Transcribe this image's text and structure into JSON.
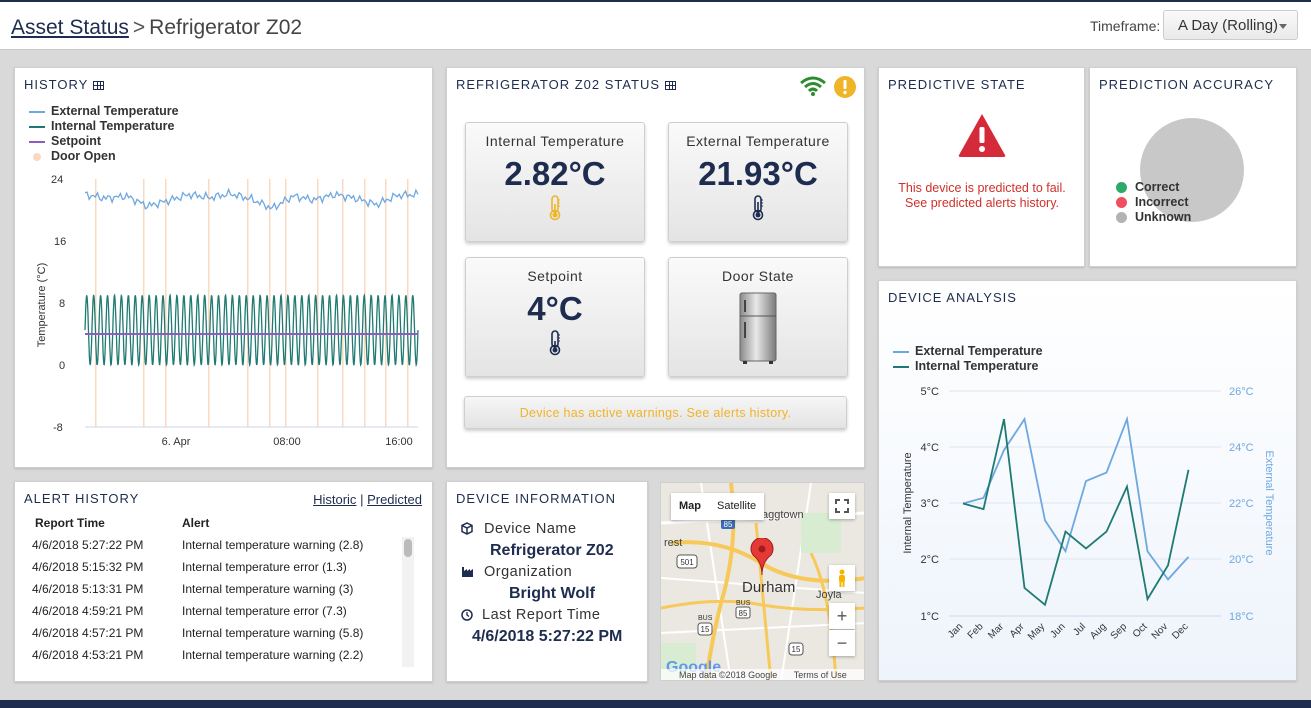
{
  "header": {
    "breadcrumb_root": "Asset Status",
    "breadcrumb_sep": ">",
    "breadcrumb_current": "Refrigerator Z02",
    "timeframe_label": "Timeframe:",
    "timeframe_value": "A Day (Rolling)"
  },
  "history": {
    "title": "History",
    "legend": [
      "External Temperature",
      "Internal Temperature",
      "Setpoint",
      "Door Open"
    ],
    "colors": {
      "external": "#6ea8e0",
      "internal": "#1f7a72",
      "setpoint": "#8e5cc0",
      "door": "#fbd9c0"
    },
    "chart_data": {
      "type": "line",
      "ylabel": "Temperature (°C)",
      "yticks": [
        "24",
        "16",
        "8",
        "0",
        "-8"
      ],
      "ylim": [
        -8,
        24
      ],
      "xticks": [
        "6. Apr",
        "08:00",
        "16:00"
      ],
      "series": [
        {
          "name": "External Temperature",
          "values": [
            22,
            21.5,
            21.8,
            20.5,
            21.2,
            22,
            21.6,
            22.1,
            21.4,
            20.2,
            21.8,
            21.3,
            22,
            21.5,
            20.7,
            21.9,
            22
          ]
        },
        {
          "name": "Internal Temperature",
          "min": 0,
          "max": 9,
          "cycles": 48
        },
        {
          "name": "Setpoint",
          "values": [
            4,
            4
          ]
        }
      ]
    }
  },
  "status": {
    "title": "Refrigerator Z02 Status",
    "cards": [
      {
        "label": "Internal Temperature",
        "value": "2.82°C",
        "icon": "thermometer-icon",
        "color": "#f0b429"
      },
      {
        "label": "External Temperature",
        "value": "21.93°C",
        "icon": "thermometer-icon",
        "color": "#1e2d4f"
      },
      {
        "label": "Setpoint",
        "value": "4°C",
        "icon": "thermometer-icon",
        "color": "#1e2d4f"
      },
      {
        "label": "Door State",
        "value": "",
        "icon": "refrigerator-icon"
      }
    ],
    "warning": "Device has active warnings. See alerts history."
  },
  "predictive": {
    "title": "Predictive State",
    "message_line1": "This device is predicted to fail.",
    "message_line2": "See predicted alerts history."
  },
  "accuracy": {
    "title": "Prediction Accuracy",
    "legend": [
      {
        "label": "Correct",
        "color": "#2ea86b"
      },
      {
        "label": "Incorrect",
        "color": "#f04e5e"
      },
      {
        "label": "Unknown",
        "color": "#b3b3b3"
      }
    ]
  },
  "analysis": {
    "title": "Device Analysis",
    "chart_data": {
      "type": "line",
      "categories": [
        "Jan",
        "Feb",
        "Mar",
        "Apr",
        "May",
        "Jun",
        "Jul",
        "Aug",
        "Sep",
        "Oct",
        "Nov",
        "Dec"
      ],
      "series": [
        {
          "name": "External Temperature",
          "axis": "right",
          "values": [
            22,
            22.2,
            23.9,
            25,
            21.4,
            20.3,
            22.8,
            23.1,
            25,
            20.3,
            19.3,
            20.1
          ]
        },
        {
          "name": "Internal Temperature",
          "axis": "left",
          "values": [
            3,
            2.9,
            4.5,
            1.5,
            1.2,
            2.5,
            2.2,
            2.5,
            3.3,
            1.3,
            1.9,
            3.6
          ]
        }
      ],
      "ylabel_left": "Internal Temperature",
      "ylabel_right": "External Temperature",
      "yticks_left": [
        "5°C",
        "4°C",
        "3°C",
        "2°C",
        "1°C"
      ],
      "yticks_right": [
        "26°C",
        "24°C",
        "22°C",
        "20°C",
        "18°C"
      ],
      "ylim_left": [
        1,
        5
      ],
      "ylim_right": [
        18,
        26
      ]
    }
  },
  "alerts": {
    "title": "Alert History",
    "link_historic": "Historic",
    "link_sep": "|",
    "link_predicted": "Predicted",
    "columns": [
      "Report Time",
      "Alert"
    ],
    "rows": [
      [
        "4/6/2018 5:27:22 PM",
        "Internal temperature warning (2.8)"
      ],
      [
        "4/6/2018 5:15:32 PM",
        "Internal temperature error (1.3)"
      ],
      [
        "4/6/2018 5:13:31 PM",
        "Internal temperature warning (3)"
      ],
      [
        "4/6/2018 4:59:21 PM",
        "Internal temperature error (7.3)"
      ],
      [
        "4/6/2018 4:57:21 PM",
        "Internal temperature warning (5.8)"
      ],
      [
        "4/6/2018 4:53:21 PM",
        "Internal temperature warning (2.2)"
      ]
    ]
  },
  "device": {
    "title": "Device Information",
    "name_label": "Device Name",
    "name_value": "Refrigerator Z02",
    "org_label": "Organization",
    "org_value": "Bright Wolf",
    "report_label": "Last Report Time",
    "report_value": "4/6/2018 5:27:22 PM"
  },
  "map": {
    "btn_map": "Map",
    "btn_satellite": "Satellite",
    "city": "Durham",
    "label_raggtown": "aggtown",
    "label_forest": "rest",
    "label_joyland": "Joyla",
    "route_85": "85",
    "route_501": "501",
    "route_15": "15",
    "route_15b": "15",
    "route_bus": "BUS",
    "route_bus2": "BUS",
    "route_85b": "85",
    "google": "Google",
    "attribution": "Map data ©2018 Google",
    "terms": "Terms of Use"
  }
}
